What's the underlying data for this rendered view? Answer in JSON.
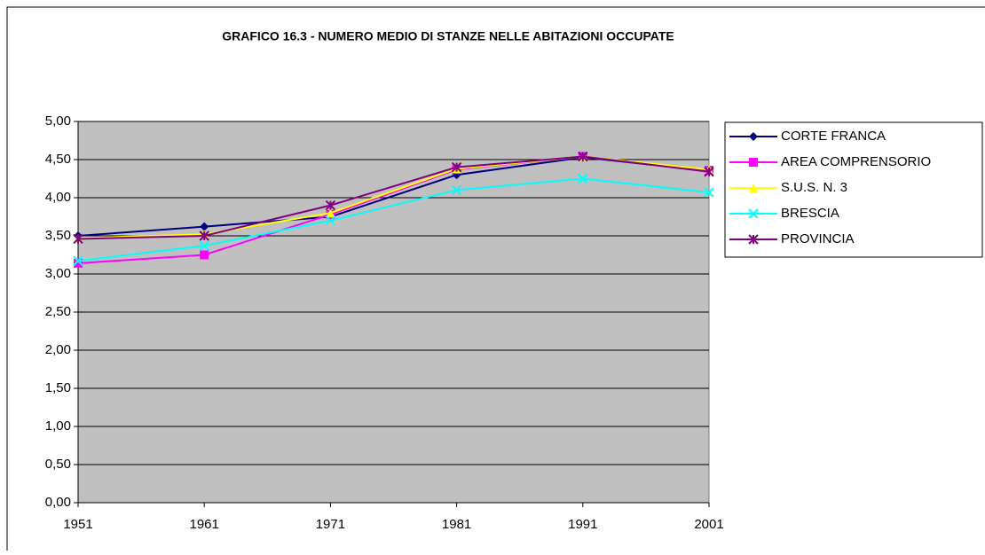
{
  "chart_data": {
    "type": "line",
    "title": "GRAFICO 16.3 - NUMERO MEDIO DI STANZE NELLE ABITAZIONI OCCUPATE",
    "x": [
      1951,
      1961,
      1971,
      1981,
      1991,
      2001
    ],
    "xlim": [
      1951,
      2001
    ],
    "xticks": [
      1951,
      1961,
      1971,
      1981,
      1991,
      2001
    ],
    "ylim": [
      0,
      5
    ],
    "yticks": [
      {
        "value": 0,
        "label": "0,00"
      },
      {
        "value": 0.5,
        "label": "0,50"
      },
      {
        "value": 1,
        "label": "1,00"
      },
      {
        "value": 1.5,
        "label": "1,50"
      },
      {
        "value": 2,
        "label": "2,00"
      },
      {
        "value": 2.5,
        "label": "2,50"
      },
      {
        "value": 3,
        "label": "3,00"
      },
      {
        "value": 3.5,
        "label": "3,50"
      },
      {
        "value": 4,
        "label": "4,00"
      },
      {
        "value": 4.5,
        "label": "4,50"
      },
      {
        "value": 5,
        "label": "5,00"
      }
    ],
    "grid": true,
    "legend": "right",
    "series": [
      {
        "name": "CORTE FRANCA",
        "color": "#000080",
        "marker": "diamond",
        "values": [
          3.5,
          3.62,
          3.75,
          4.3,
          4.53,
          4.35
        ]
      },
      {
        "name": "AREA COMPRENSORIO",
        "color": "#ff00ff",
        "marker": "square",
        "values": [
          3.14,
          3.25,
          3.78,
          4.37,
          4.54,
          4.36
        ]
      },
      {
        "name": "S.U.S. N. 3",
        "color": "#ffff00",
        "marker": "triangle",
        "values": [
          3.47,
          3.52,
          3.8,
          4.38,
          4.54,
          4.37
        ]
      },
      {
        "name": "BRESCIA",
        "color": "#00ffff",
        "marker": "x",
        "values": [
          3.17,
          3.37,
          3.7,
          4.1,
          4.25,
          4.07
        ]
      },
      {
        "name": "PROVINCIA",
        "color": "#800080",
        "marker": "star",
        "values": [
          3.46,
          3.5,
          3.9,
          4.4,
          4.54,
          4.34
        ]
      }
    ]
  }
}
